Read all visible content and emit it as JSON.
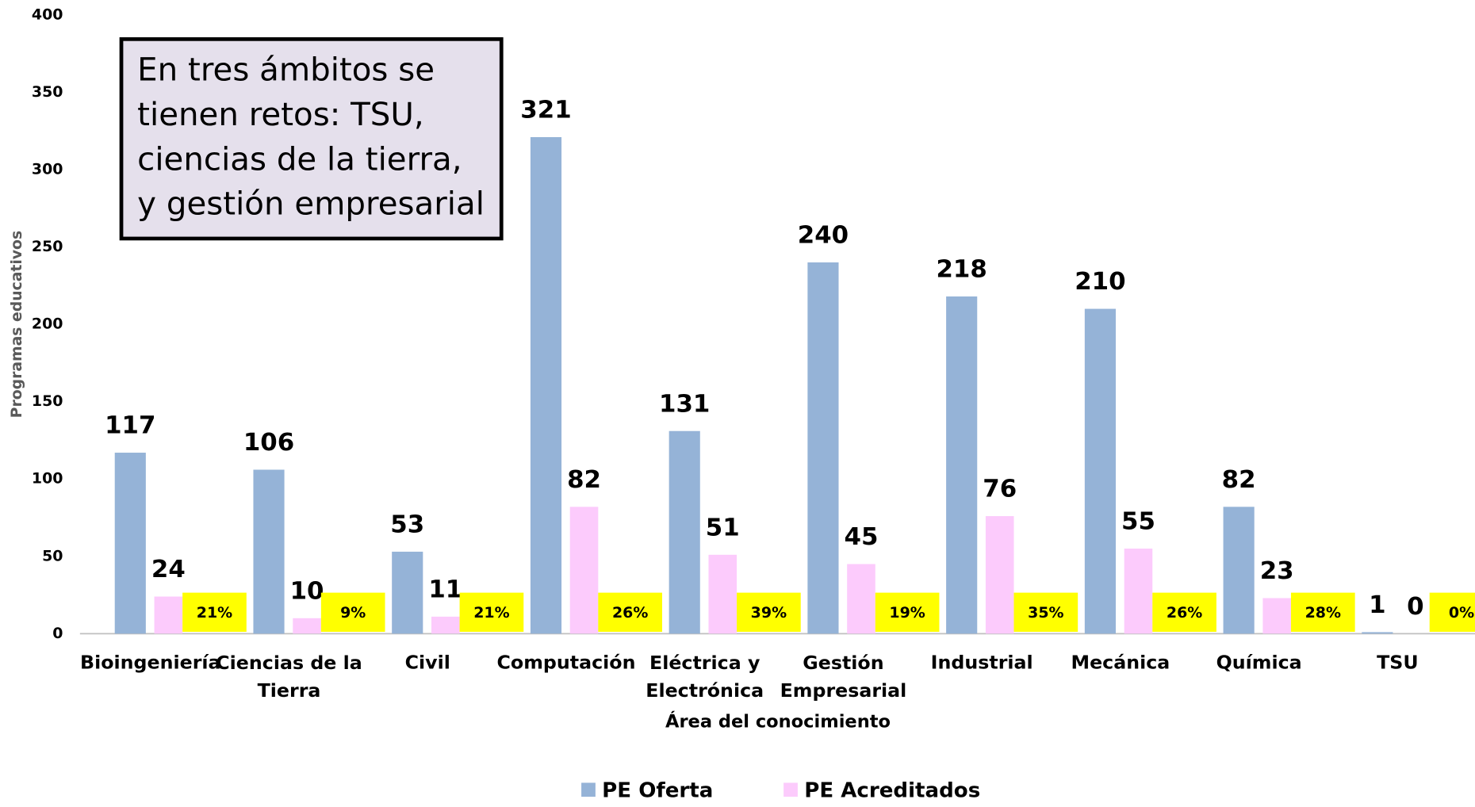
{
  "chart_data": {
    "type": "bar",
    "y_label": "Programas educativos",
    "x_label": "Área del conocimiento",
    "categories": [
      "Bioingeniería",
      "Ciencias de la Tierra",
      "Civil",
      "Computación",
      "Eléctrica y Electrónica",
      "Gestión Empresarial",
      "Industrial",
      "Mecánica",
      "Química",
      "TSU"
    ],
    "series": [
      {
        "name": "PE Oferta",
        "color": "#95b3d7",
        "values": [
          117,
          106,
          53,
          321,
          131,
          240,
          218,
          210,
          82,
          1
        ]
      },
      {
        "name": "PE Acreditados",
        "color": "#fccbfc",
        "values": [
          24,
          10,
          11,
          82,
          51,
          45,
          76,
          55,
          23,
          0
        ]
      }
    ],
    "percent_labels": [
      "21%",
      "9%",
      "21%",
      "26%",
      "39%",
      "19%",
      "35%",
      "26%",
      "28%",
      "0%"
    ],
    "annotation": [
      "En tres ámbitos se",
      "tienen retos:  TSU,",
      "ciencias de la tierra,",
      "y gestión empresarial"
    ],
    "ylim": [
      0,
      400
    ],
    "yticks": [
      0,
      50,
      100,
      150,
      200,
      250,
      300,
      350,
      400
    ]
  }
}
